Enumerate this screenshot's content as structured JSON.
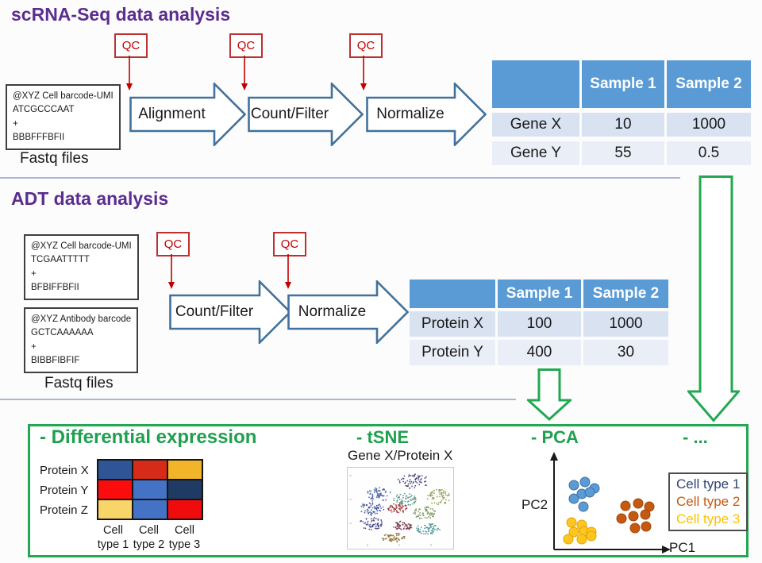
{
  "labels": {
    "qc": "QC",
    "fastq_caption": "Fastq files"
  },
  "colors": {
    "title_purple": "#5b2d90",
    "accent_green": "#22a851",
    "qc_red": "#c00000",
    "arrow_steel": "#41719c",
    "table_header_bg": "#5b9bd5",
    "table_row_dark": "#d9e2f1",
    "table_row_light": "#eaeef7",
    "divider": "#a7b9d1"
  },
  "scrna": {
    "title": "scRNA-Seq data analysis",
    "fastq_lines": [
      "@XYZ Cell barcode-UMI",
      "ATCGCCCAAT",
      "+",
      "BBBFFFBFII"
    ],
    "steps": [
      "Alignment",
      "Count/Filter",
      "Normalize"
    ],
    "table": {
      "headers": [
        "",
        "Sample 1",
        "Sample 2"
      ],
      "rows": [
        [
          "Gene X",
          "10",
          "1000"
        ],
        [
          "Gene Y",
          "55",
          "0.5"
        ]
      ]
    }
  },
  "adt": {
    "title": "ADT data analysis",
    "fastq_boxes": [
      [
        "@XYZ Cell barcode-UMI",
        "TCGAATTTTT",
        "+",
        "BFBIFFBFII"
      ],
      [
        "@XYZ Antibody barcode",
        "GCTCAAAAAA",
        "+",
        "BIBBFIBFIF"
      ]
    ],
    "steps": [
      "Count/Filter",
      "Normalize"
    ],
    "table": {
      "headers": [
        "",
        "Sample 1",
        "Sample 2"
      ],
      "rows": [
        [
          "Protein X",
          "100",
          "1000"
        ],
        [
          "Protein Y",
          "400",
          "30"
        ]
      ]
    }
  },
  "downstream": {
    "diff_title": "- Differential expression",
    "heatmap": {
      "row_labels": [
        "Protein X",
        "Protein Y",
        "Protein Z"
      ],
      "col_labels": [
        [
          "Cell",
          "type 1"
        ],
        [
          "Cell",
          "type 2"
        ],
        [
          "Cell",
          "type 3"
        ]
      ],
      "cell_colors": [
        [
          "#2f5597",
          "#d62b18",
          "#f2b52a"
        ],
        [
          "#fb0d0e",
          "#4472c4",
          "#1f3a63"
        ],
        [
          "#f8d568",
          "#4472c4",
          "#f00c0d"
        ]
      ]
    },
    "tsne": {
      "title": "- tSNE",
      "subtitle": "Gene X/Protein X",
      "clusters": [
        [
          83,
          17,
          20,
          9,
          "#32306e"
        ],
        [
          39,
          34,
          16,
          9,
          "#3a55a0"
        ],
        [
          30,
          52,
          17,
          8,
          "#32489b"
        ],
        [
          72,
          40,
          15,
          8,
          "#4b8f7d"
        ],
        [
          115,
          37,
          15,
          10,
          "#8a9040"
        ],
        [
          63,
          51,
          13,
          6,
          "#9e3535"
        ],
        [
          97,
          57,
          14,
          8,
          "#6f9150"
        ],
        [
          30,
          70,
          15,
          8,
          "#3d3c85"
        ],
        [
          69,
          73,
          13,
          6,
          "#77374a"
        ],
        [
          101,
          77,
          16,
          7,
          "#3f8f8f"
        ],
        [
          57,
          88,
          15,
          6,
          "#8a6a30"
        ]
      ]
    },
    "pca": {
      "title": "- PCA",
      "xlabel": "PC1",
      "ylabel": "PC2",
      "clusters": [
        {
          "name": "Cell type 1",
          "fill": "#5b9bd5",
          "stroke": "#3f6fa0",
          "points": [
            [
              73,
              45
            ],
            [
              87,
              41
            ],
            [
              99,
              49
            ],
            [
              73,
              62
            ],
            [
              83,
              56
            ],
            [
              93,
              54
            ],
            [
              85,
              72
            ]
          ]
        },
        {
          "name": "Cell type 3",
          "fill": "#ffc520",
          "stroke": "#e3a400",
          "points": [
            [
              70,
              92
            ],
            [
              83,
              95
            ],
            [
              73,
              104
            ],
            [
              86,
              103
            ],
            [
              95,
              104
            ],
            [
              66,
              113
            ],
            [
              83,
              113
            ],
            [
              95,
              109
            ]
          ]
        },
        {
          "name": "Cell type 2",
          "fill": "#c45911",
          "stroke": "#a34709",
          "points": [
            [
              138,
              71
            ],
            [
              154,
              68
            ],
            [
              168,
              72
            ],
            [
              133,
              87
            ],
            [
              148,
              84
            ],
            [
              163,
              82
            ],
            [
              150,
              99
            ],
            [
              164,
              97
            ]
          ]
        }
      ],
      "legend": [
        {
          "label": "Cell type 1",
          "color": "#2f4472"
        },
        {
          "label": "Cell type 2",
          "color": "#c55a11"
        },
        {
          "label": "Cell type 3",
          "color": "#ffc000"
        }
      ]
    },
    "more": "- ..."
  }
}
